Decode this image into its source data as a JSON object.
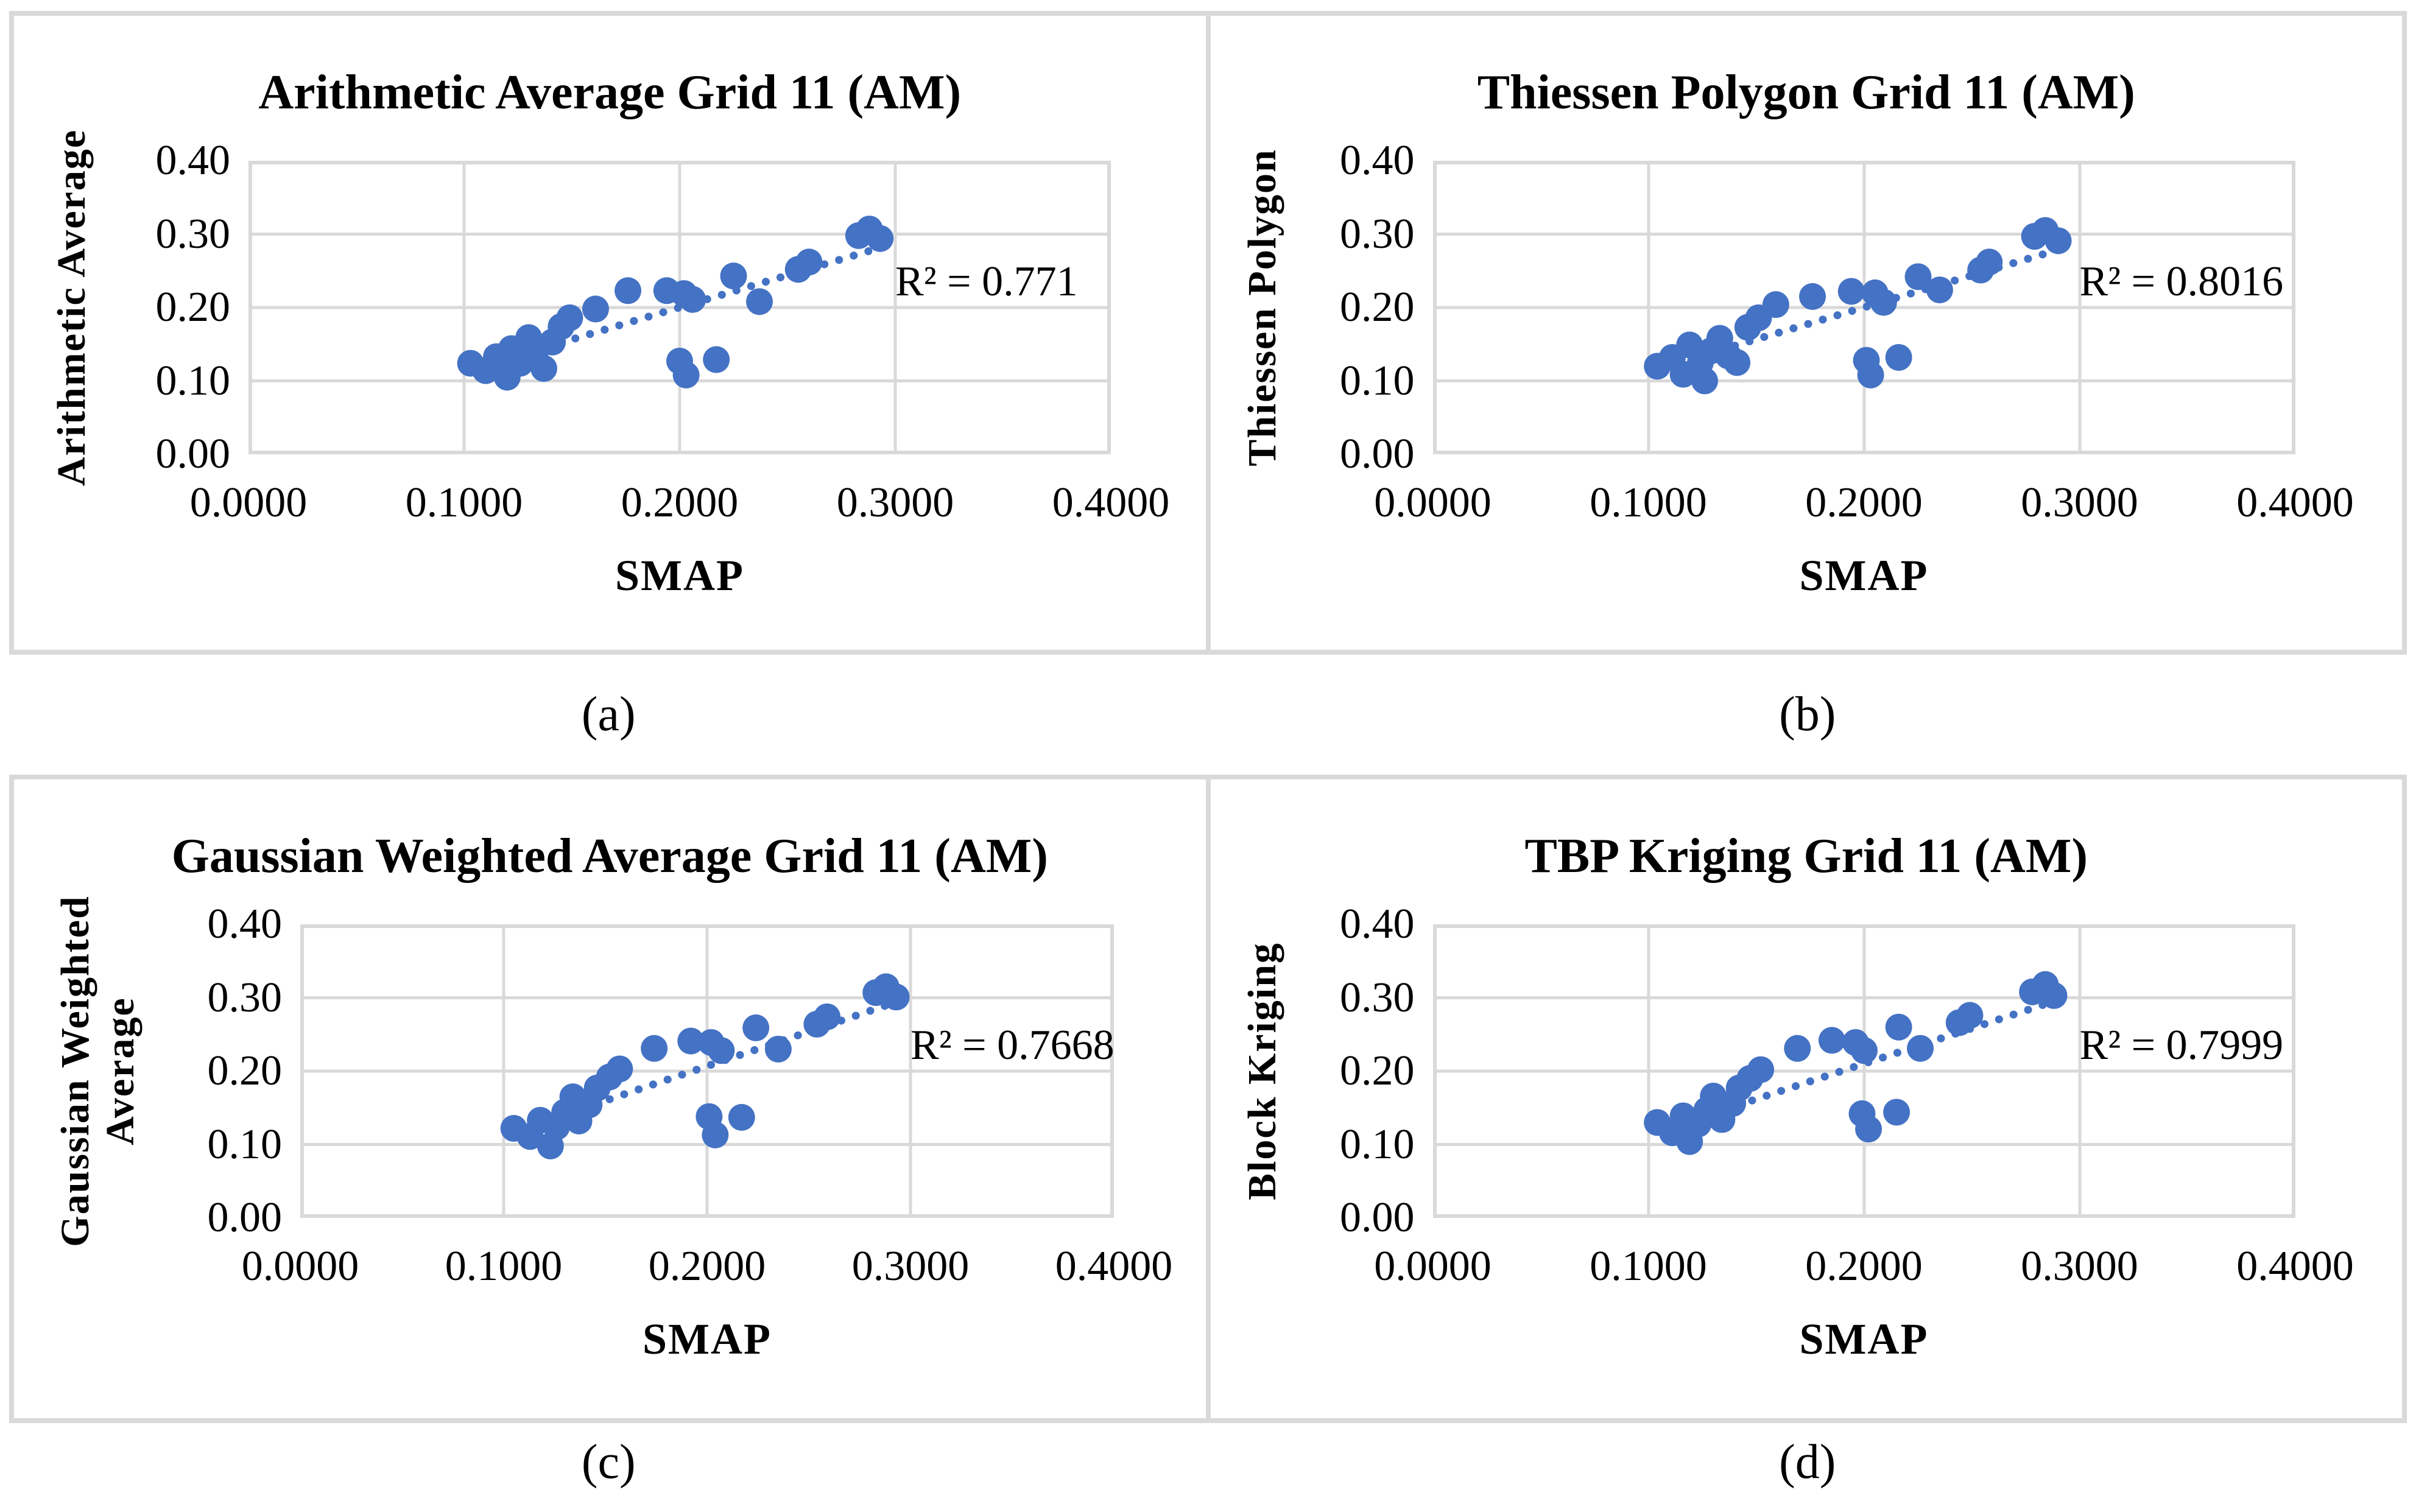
{
  "figure": {
    "background": "#ffffff",
    "panel_border_color": "#d9d9d9",
    "gridline_color": "#d9d9d9",
    "marker_color": "#4472c4",
    "trendline_color": "#4472c4"
  },
  "captions": [
    "(a)",
    "(b)",
    "(c)",
    "(d)"
  ],
  "chart_data": [
    {
      "type": "scatter",
      "title": "Arithmetic Average Grid 11 (AM)",
      "xlabel": "SMAP",
      "ylabel": "Arithmetic Average",
      "r2_label": "R² = 0.771",
      "xlim": [
        0.0,
        0.4
      ],
      "ylim": [
        0.0,
        0.4
      ],
      "x_ticks": [
        "0.0000",
        "0.1000",
        "0.2000",
        "0.3000",
        "0.4000"
      ],
      "y_ticks": [
        "0.40",
        "0.30",
        "0.20",
        "0.10",
        "0.00"
      ],
      "grid": true,
      "legend": null,
      "trendline": {
        "style": "dotted",
        "x1": 0.138,
        "y1": 0.146,
        "x2": 0.297,
        "y2": 0.285
      },
      "points": [
        [
          0.103,
          0.124
        ],
        [
          0.11,
          0.114
        ],
        [
          0.115,
          0.133
        ],
        [
          0.12,
          0.105
        ],
        [
          0.122,
          0.144
        ],
        [
          0.126,
          0.124
        ],
        [
          0.13,
          0.159
        ],
        [
          0.133,
          0.138
        ],
        [
          0.137,
          0.117
        ],
        [
          0.141,
          0.153
        ],
        [
          0.145,
          0.174
        ],
        [
          0.149,
          0.186
        ],
        [
          0.161,
          0.198
        ],
        [
          0.176,
          0.223
        ],
        [
          0.194,
          0.223
        ],
        [
          0.202,
          0.219
        ],
        [
          0.206,
          0.211
        ],
        [
          0.225,
          0.243
        ],
        [
          0.237,
          0.208
        ],
        [
          0.255,
          0.252
        ],
        [
          0.26,
          0.262
        ],
        [
          0.283,
          0.298
        ],
        [
          0.288,
          0.307
        ],
        [
          0.293,
          0.294
        ],
        [
          0.2,
          0.127
        ],
        [
          0.203,
          0.108
        ],
        [
          0.217,
          0.129
        ]
      ]
    },
    {
      "type": "scatter",
      "title": "Thiessen Polygon Grid 11 (AM)",
      "xlabel": "SMAP",
      "ylabel": "Thiessen Polygon",
      "r2_label": "R² = 0.8016",
      "xlim": [
        0.0,
        0.4
      ],
      "ylim": [
        0.0,
        0.4
      ],
      "x_ticks": [
        "0.0000",
        "0.1000",
        "0.2000",
        "0.3000",
        "0.4000"
      ],
      "y_ticks": [
        "0.40",
        "0.30",
        "0.20",
        "0.10",
        "0.00"
      ],
      "grid": true,
      "legend": null,
      "trendline": {
        "style": "dotted",
        "x1": 0.14,
        "y1": 0.148,
        "x2": 0.295,
        "y2": 0.283
      },
      "points": [
        [
          0.104,
          0.12
        ],
        [
          0.111,
          0.132
        ],
        [
          0.116,
          0.109
        ],
        [
          0.119,
          0.149
        ],
        [
          0.124,
          0.125
        ],
        [
          0.126,
          0.1
        ],
        [
          0.129,
          0.141
        ],
        [
          0.133,
          0.158
        ],
        [
          0.137,
          0.134
        ],
        [
          0.141,
          0.125
        ],
        [
          0.146,
          0.173
        ],
        [
          0.151,
          0.186
        ],
        [
          0.159,
          0.204
        ],
        [
          0.176,
          0.215
        ],
        [
          0.194,
          0.222
        ],
        [
          0.205,
          0.22
        ],
        [
          0.209,
          0.207
        ],
        [
          0.225,
          0.242
        ],
        [
          0.235,
          0.224
        ],
        [
          0.254,
          0.251
        ],
        [
          0.258,
          0.262
        ],
        [
          0.279,
          0.297
        ],
        [
          0.284,
          0.305
        ],
        [
          0.29,
          0.291
        ],
        [
          0.201,
          0.128
        ],
        [
          0.203,
          0.108
        ],
        [
          0.216,
          0.132
        ]
      ]
    },
    {
      "type": "scatter",
      "title": "Gaussian Weighted Average Grid 11 (AM)",
      "xlabel": "SMAP",
      "ylabel": "Gaussian Weighted Average",
      "r2_label": "R² = 0.7668",
      "xlim": [
        0.0,
        0.4
      ],
      "ylim": [
        0.0,
        0.4
      ],
      "x_ticks": [
        "0.0000",
        "0.1000",
        "0.2000",
        "0.3000",
        "0.4000"
      ],
      "y_ticks": [
        "0.40",
        "0.30",
        "0.20",
        "0.10",
        "0.00"
      ],
      "grid": true,
      "legend": null,
      "trendline": {
        "style": "dotted",
        "x1": 0.145,
        "y1": 0.155,
        "x2": 0.297,
        "y2": 0.298
      },
      "points": [
        [
          0.105,
          0.122
        ],
        [
          0.113,
          0.111
        ],
        [
          0.118,
          0.133
        ],
        [
          0.123,
          0.098
        ],
        [
          0.126,
          0.124
        ],
        [
          0.13,
          0.144
        ],
        [
          0.134,
          0.165
        ],
        [
          0.137,
          0.132
        ],
        [
          0.142,
          0.154
        ],
        [
          0.146,
          0.177
        ],
        [
          0.152,
          0.192
        ],
        [
          0.157,
          0.203
        ],
        [
          0.174,
          0.231
        ],
        [
          0.192,
          0.241
        ],
        [
          0.202,
          0.239
        ],
        [
          0.207,
          0.228
        ],
        [
          0.224,
          0.259
        ],
        [
          0.235,
          0.23
        ],
        [
          0.254,
          0.264
        ],
        [
          0.259,
          0.274
        ],
        [
          0.283,
          0.307
        ],
        [
          0.288,
          0.315
        ],
        [
          0.293,
          0.301
        ],
        [
          0.201,
          0.138
        ],
        [
          0.204,
          0.113
        ],
        [
          0.217,
          0.137
        ]
      ]
    },
    {
      "type": "scatter",
      "title": "TBP Kriging Grid 11 (AM)",
      "xlabel": "SMAP",
      "ylabel": "Block Kriging",
      "r2_label": "R² = 0.7999",
      "xlim": [
        0.0,
        0.4
      ],
      "ylim": [
        0.0,
        0.4
      ],
      "x_ticks": [
        "0.0000",
        "0.1000",
        "0.2000",
        "0.3000",
        "0.4000"
      ],
      "y_ticks": [
        "0.40",
        "0.30",
        "0.20",
        "0.10",
        "0.00"
      ],
      "grid": true,
      "legend": null,
      "trendline": {
        "style": "dotted",
        "x1": 0.148,
        "y1": 0.16,
        "x2": 0.293,
        "y2": 0.3
      },
      "points": [
        [
          0.104,
          0.13
        ],
        [
          0.111,
          0.116
        ],
        [
          0.116,
          0.139
        ],
        [
          0.119,
          0.104
        ],
        [
          0.123,
          0.128
        ],
        [
          0.127,
          0.147
        ],
        [
          0.13,
          0.166
        ],
        [
          0.134,
          0.134
        ],
        [
          0.139,
          0.156
        ],
        [
          0.142,
          0.177
        ],
        [
          0.147,
          0.19
        ],
        [
          0.152,
          0.202
        ],
        [
          0.169,
          0.231
        ],
        [
          0.185,
          0.242
        ],
        [
          0.196,
          0.239
        ],
        [
          0.2,
          0.228
        ],
        [
          0.216,
          0.26
        ],
        [
          0.226,
          0.231
        ],
        [
          0.244,
          0.266
        ],
        [
          0.249,
          0.276
        ],
        [
          0.278,
          0.308
        ],
        [
          0.284,
          0.318
        ],
        [
          0.288,
          0.303
        ],
        [
          0.199,
          0.142
        ],
        [
          0.202,
          0.121
        ],
        [
          0.215,
          0.144
        ]
      ]
    }
  ]
}
